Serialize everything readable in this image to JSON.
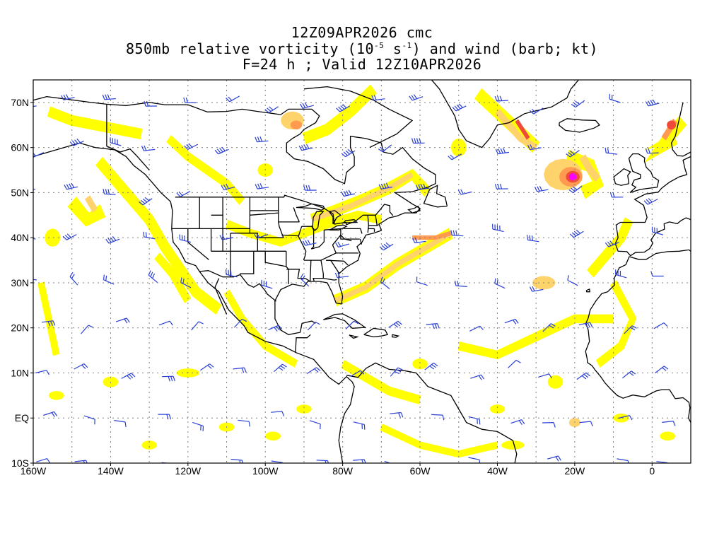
{
  "title": {
    "line1": "12Z09APR2026 cmc",
    "line2_pre": "850mb relative vorticity (10",
    "line2_sup1": "-5",
    "line2_mid": " s",
    "line2_sup2": "-1",
    "line2_post": ") and wind (barb; kt)",
    "line3": "F=24 h ; Valid 12Z10APR2026"
  },
  "map": {
    "lon_range": [
      -160,
      10
    ],
    "lat_range": [
      -10,
      75
    ],
    "lat_labels": [
      "70N",
      "60N",
      "50N",
      "40N",
      "30N",
      "20N",
      "10N",
      "EQ",
      "10S"
    ],
    "lat_values": [
      70,
      60,
      50,
      40,
      30,
      20,
      10,
      0,
      -10
    ],
    "lon_labels": [
      "160W",
      "140W",
      "120W",
      "100W",
      "80W",
      "60W",
      "40W",
      "20W",
      "0"
    ],
    "lon_values": [
      -160,
      -140,
      -120,
      -100,
      -80,
      -60,
      -40,
      -20,
      0
    ],
    "grid": "dotted",
    "colors": {
      "vort_low": "#ffff00",
      "vort_mid": "#ffd36b",
      "vort_high": "#ff9a50",
      "vort_higher": "#f04a3a",
      "vort_max": "#ff00ff",
      "barb": "#2a3fd6",
      "coast": "#000000"
    },
    "features": {
      "vorticity_max": "cyclone near 53N 20W",
      "wind_barb_spacing_deg": 10
    }
  }
}
